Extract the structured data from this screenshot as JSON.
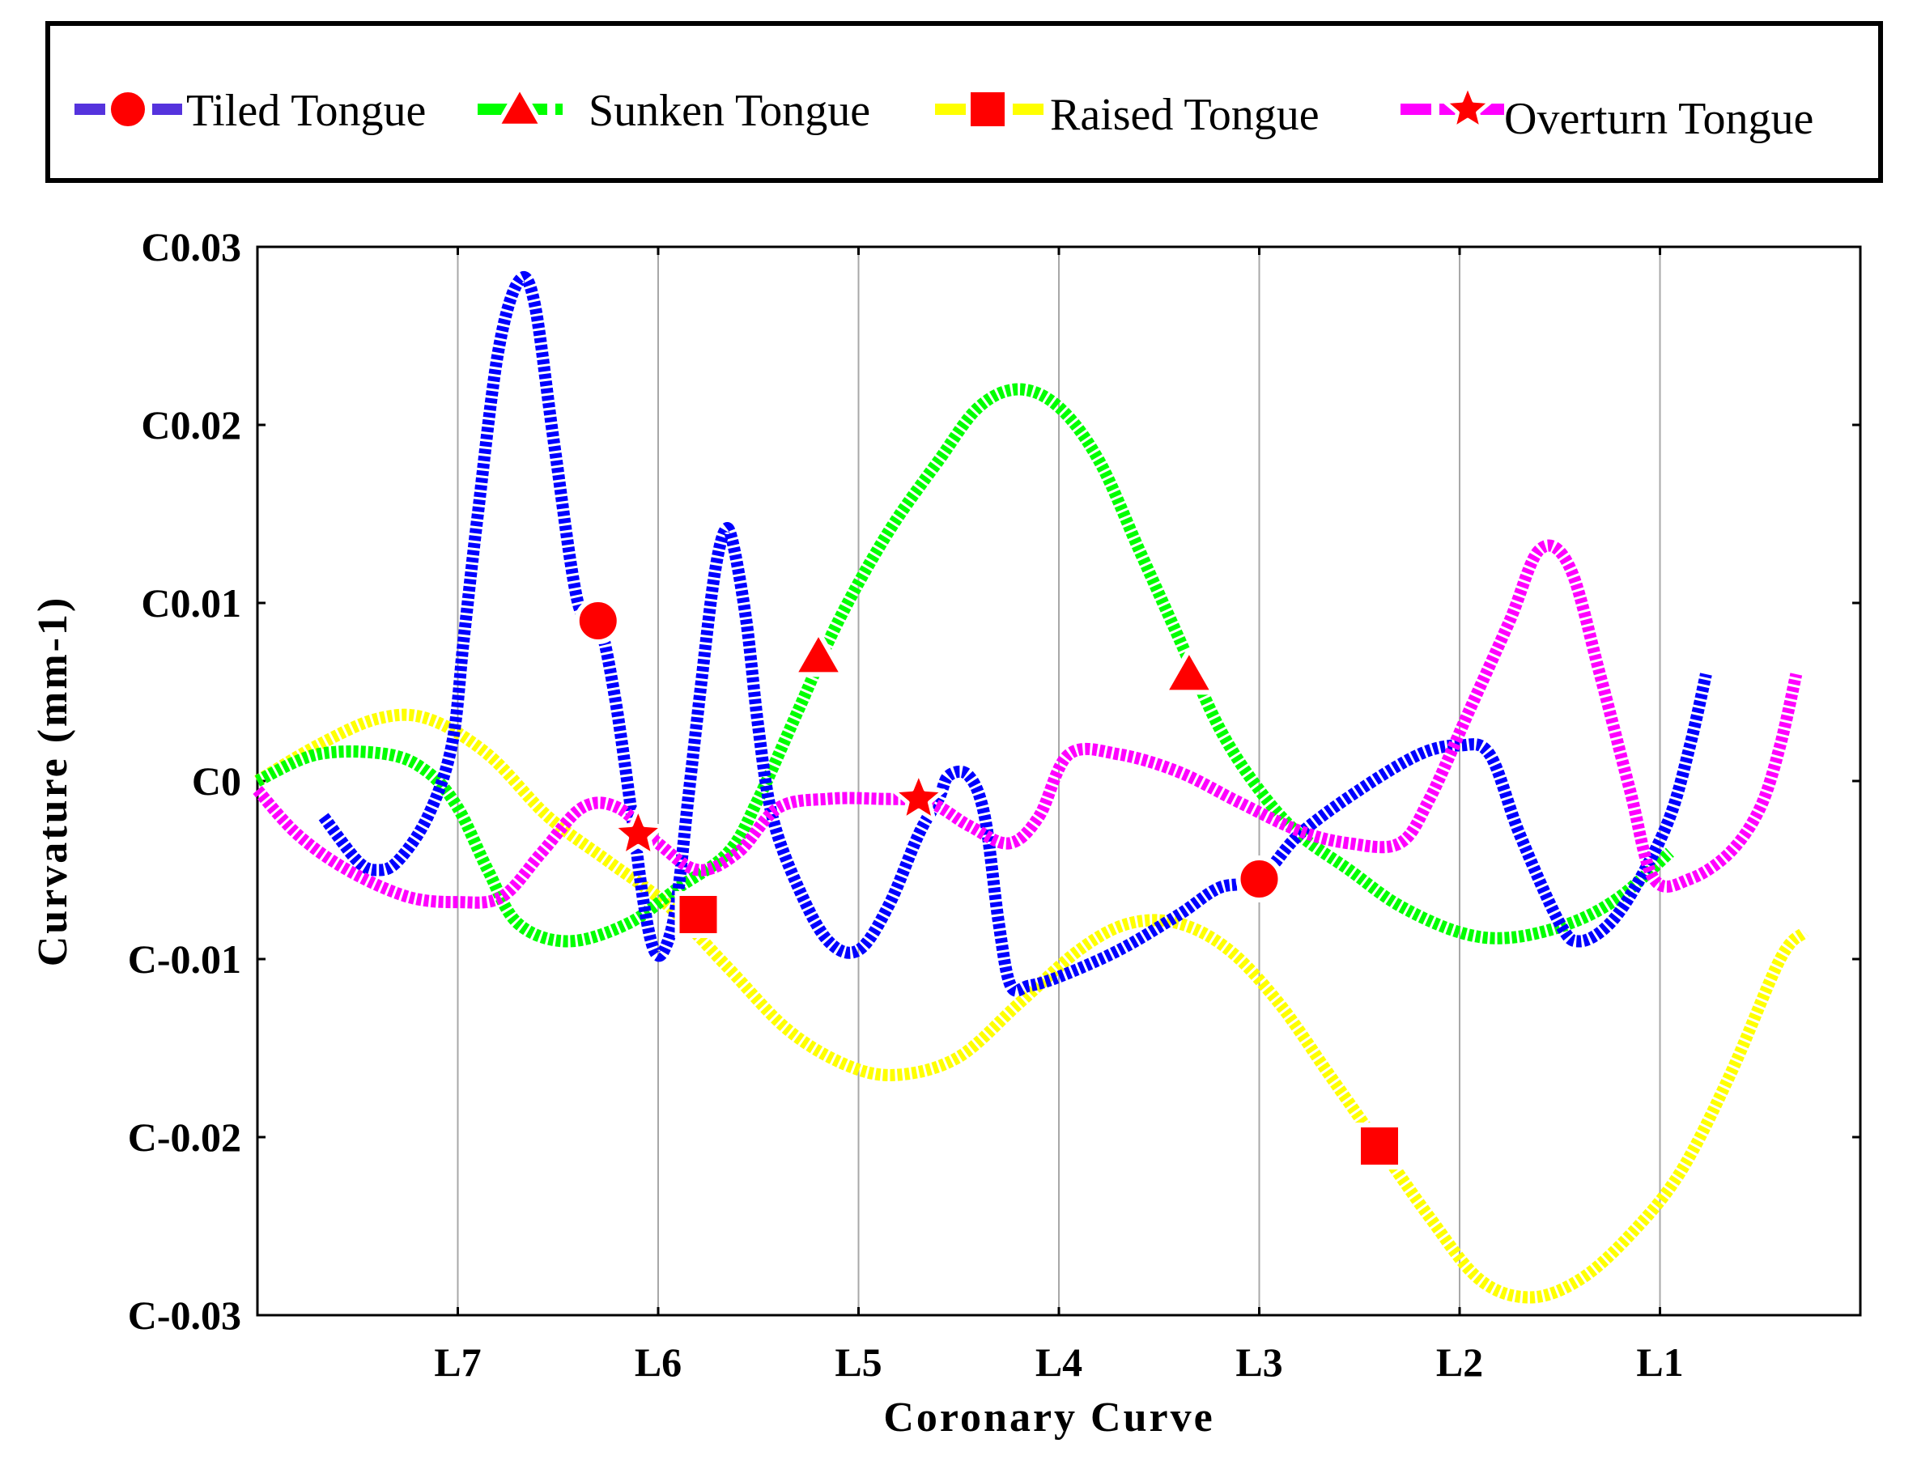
{
  "chart_data": {
    "type": "line",
    "title": "",
    "xlabel": "Coronary Curve",
    "ylabel": "Curvature (mm-1)",
    "ylim": [
      -0.03,
      0.03
    ],
    "xlim": [
      0,
      8
    ],
    "x_tick_labels": [
      "L7",
      "L6",
      "L5",
      "L4",
      "L3",
      "L2",
      "L1"
    ],
    "x_tick_positions": [
      1,
      2,
      3,
      4,
      5,
      6,
      7
    ],
    "y_ticks": [
      {
        "value": 0.03,
        "label": "C0.03"
      },
      {
        "value": 0.02,
        "label": "C0.02"
      },
      {
        "value": 0.01,
        "label": "C0.01"
      },
      {
        "value": 0,
        "label": "C0"
      },
      {
        "value": -0.01,
        "label": "C-0.01"
      },
      {
        "value": -0.02,
        "label": "C-0.02"
      },
      {
        "value": -0.03,
        "label": "C-0.03"
      }
    ],
    "grid": "vertical",
    "legend_position": "top",
    "series": [
      {
        "name": "Tiled Tongue",
        "color": "#0000ff",
        "legend_line_color": "#5533dd",
        "marker": "circle",
        "marker_points": [
          [
            1.7,
            0.009
          ],
          [
            5.0,
            -0.0055
          ]
        ],
        "points": [
          [
            0.33,
            -0.002
          ],
          [
            0.5,
            -0.0045
          ],
          [
            0.6,
            -0.005
          ],
          [
            0.7,
            -0.0045
          ],
          [
            0.85,
            -0.002
          ],
          [
            0.97,
            0.002
          ],
          [
            1.03,
            0.008
          ],
          [
            1.1,
            0.015
          ],
          [
            1.2,
            0.024
          ],
          [
            1.3,
            0.028
          ],
          [
            1.38,
            0.027
          ],
          [
            1.48,
            0.019
          ],
          [
            1.6,
            0.01
          ],
          [
            1.7,
            0.009
          ],
          [
            1.78,
            0.005
          ],
          [
            1.87,
            -0.002
          ],
          [
            1.93,
            -0.007
          ],
          [
            1.98,
            -0.0095
          ],
          [
            2.03,
            -0.0095
          ],
          [
            2.09,
            -0.007
          ],
          [
            2.15,
            -0.001
          ],
          [
            2.22,
            0.006
          ],
          [
            2.28,
            0.0115
          ],
          [
            2.33,
            0.014
          ],
          [
            2.37,
            0.0135
          ],
          [
            2.44,
            0.009
          ],
          [
            2.5,
            0.003
          ],
          [
            2.57,
            -0.002
          ],
          [
            2.7,
            -0.006
          ],
          [
            2.85,
            -0.009
          ],
          [
            3.0,
            -0.0095
          ],
          [
            3.15,
            -0.007
          ],
          [
            3.3,
            -0.003
          ],
          [
            3.4,
            -0.001
          ],
          [
            3.45,
            0.0003
          ],
          [
            3.55,
            0.0003
          ],
          [
            3.63,
            -0.002
          ],
          [
            3.7,
            -0.008
          ],
          [
            3.76,
            -0.0115
          ],
          [
            3.85,
            -0.0115
          ],
          [
            4.0,
            -0.011
          ],
          [
            4.3,
            -0.0095
          ],
          [
            4.6,
            -0.0075
          ],
          [
            4.8,
            -0.006
          ],
          [
            5.0,
            -0.0055
          ],
          [
            5.2,
            -0.003
          ],
          [
            5.5,
            -0.0005
          ],
          [
            5.8,
            0.0015
          ],
          [
            6.0,
            0.002
          ],
          [
            6.15,
            0.0015
          ],
          [
            6.3,
            -0.003
          ],
          [
            6.5,
            -0.008
          ],
          [
            6.6,
            -0.009
          ],
          [
            6.75,
            -0.008
          ],
          [
            6.9,
            -0.0055
          ],
          [
            7.05,
            -0.002
          ],
          [
            7.15,
            0.002
          ],
          [
            7.23,
            0.006
          ]
        ]
      },
      {
        "name": "Sunken Tongue",
        "color": "#00ff00",
        "legend_line_color": "#00ff00",
        "marker": "triangle",
        "marker_points": [
          [
            2.8,
            0.007
          ],
          [
            4.65,
            0.006
          ]
        ],
        "points": [
          [
            0,
            0
          ],
          [
            0.3,
            0.0015
          ],
          [
            0.65,
            0.0015
          ],
          [
            0.85,
            0.0005
          ],
          [
            1.0,
            -0.0015
          ],
          [
            1.15,
            -0.005
          ],
          [
            1.3,
            -0.008
          ],
          [
            1.55,
            -0.009
          ],
          [
            1.85,
            -0.008
          ],
          [
            2.1,
            -0.006
          ],
          [
            2.35,
            -0.004
          ],
          [
            2.5,
            -0.001
          ],
          [
            2.7,
            0.004
          ],
          [
            2.9,
            0.009
          ],
          [
            3.15,
            0.014
          ],
          [
            3.4,
            0.018
          ],
          [
            3.6,
            0.021
          ],
          [
            3.8,
            0.022
          ],
          [
            4.0,
            0.021
          ],
          [
            4.2,
            0.018
          ],
          [
            4.4,
            0.013
          ],
          [
            4.6,
            0.008
          ],
          [
            4.8,
            0.003
          ],
          [
            5.0,
            -0.0005
          ],
          [
            5.2,
            -0.003
          ],
          [
            5.45,
            -0.005
          ],
          [
            5.7,
            -0.007
          ],
          [
            6.0,
            -0.0085
          ],
          [
            6.25,
            -0.0088
          ],
          [
            6.55,
            -0.008
          ],
          [
            6.8,
            -0.0065
          ],
          [
            7.05,
            -0.004
          ]
        ]
      },
      {
        "name": "Raised Tongue",
        "color": "#ffff00",
        "legend_line_color": "#ffff00",
        "marker": "square",
        "marker_points": [
          [
            2.2,
            -0.0075
          ],
          [
            5.6,
            -0.0205
          ]
        ],
        "points": [
          [
            0,
            0
          ],
          [
            0.3,
            0.002
          ],
          [
            0.6,
            0.0035
          ],
          [
            0.85,
            0.0035
          ],
          [
            1.15,
            0.0015
          ],
          [
            1.45,
            -0.002
          ],
          [
            1.75,
            -0.0045
          ],
          [
            2.05,
            -0.007
          ],
          [
            2.35,
            -0.0105
          ],
          [
            2.65,
            -0.014
          ],
          [
            2.95,
            -0.016
          ],
          [
            3.2,
            -0.0165
          ],
          [
            3.5,
            -0.0155
          ],
          [
            3.8,
            -0.0125
          ],
          [
            4.1,
            -0.0095
          ],
          [
            4.35,
            -0.008
          ],
          [
            4.6,
            -0.008
          ],
          [
            4.85,
            -0.0095
          ],
          [
            5.1,
            -0.0125
          ],
          [
            5.35,
            -0.0165
          ],
          [
            5.6,
            -0.0205
          ],
          [
            5.85,
            -0.0245
          ],
          [
            6.1,
            -0.028
          ],
          [
            6.35,
            -0.029
          ],
          [
            6.6,
            -0.028
          ],
          [
            6.85,
            -0.0255
          ],
          [
            7.1,
            -0.022
          ],
          [
            7.35,
            -0.0165
          ],
          [
            7.6,
            -0.01
          ],
          [
            7.72,
            -0.0085
          ]
        ]
      },
      {
        "name": "Overturn Tongue",
        "color": "#ff00ff",
        "legend_line_color": "#ff00ff",
        "marker": "star",
        "marker_points": [
          [
            1.9,
            -0.003
          ],
          [
            3.3,
            -0.001
          ]
        ],
        "points": [
          [
            0,
            -0.0005
          ],
          [
            0.2,
            -0.003
          ],
          [
            0.45,
            -0.005
          ],
          [
            0.75,
            -0.0065
          ],
          [
            1.0,
            -0.0068
          ],
          [
            1.22,
            -0.0065
          ],
          [
            1.42,
            -0.004
          ],
          [
            1.62,
            -0.0015
          ],
          [
            1.8,
            -0.0015
          ],
          [
            2.0,
            -0.0035
          ],
          [
            2.2,
            -0.005
          ],
          [
            2.4,
            -0.004
          ],
          [
            2.6,
            -0.0015
          ],
          [
            2.85,
            -0.001
          ],
          [
            3.1,
            -0.001
          ],
          [
            3.35,
            -0.0012
          ],
          [
            3.55,
            -0.0025
          ],
          [
            3.75,
            -0.0035
          ],
          [
            3.9,
            -0.002
          ],
          [
            4.05,
            0.0015
          ],
          [
            4.3,
            0.0015
          ],
          [
            4.6,
            0.0005
          ],
          [
            4.9,
            -0.0012
          ],
          [
            5.2,
            -0.0028
          ],
          [
            5.45,
            -0.0035
          ],
          [
            5.7,
            -0.0035
          ],
          [
            5.85,
            -0.001
          ],
          [
            6.05,
            0.004
          ],
          [
            6.25,
            0.009
          ],
          [
            6.4,
            0.013
          ],
          [
            6.55,
            0.012
          ],
          [
            6.7,
            0.006
          ],
          [
            6.85,
            -0.0005
          ],
          [
            6.97,
            -0.0055
          ],
          [
            7.15,
            -0.0055
          ],
          [
            7.35,
            -0.004
          ],
          [
            7.5,
            -0.0015
          ],
          [
            7.6,
            0.002
          ],
          [
            7.68,
            0.006
          ]
        ]
      }
    ]
  }
}
